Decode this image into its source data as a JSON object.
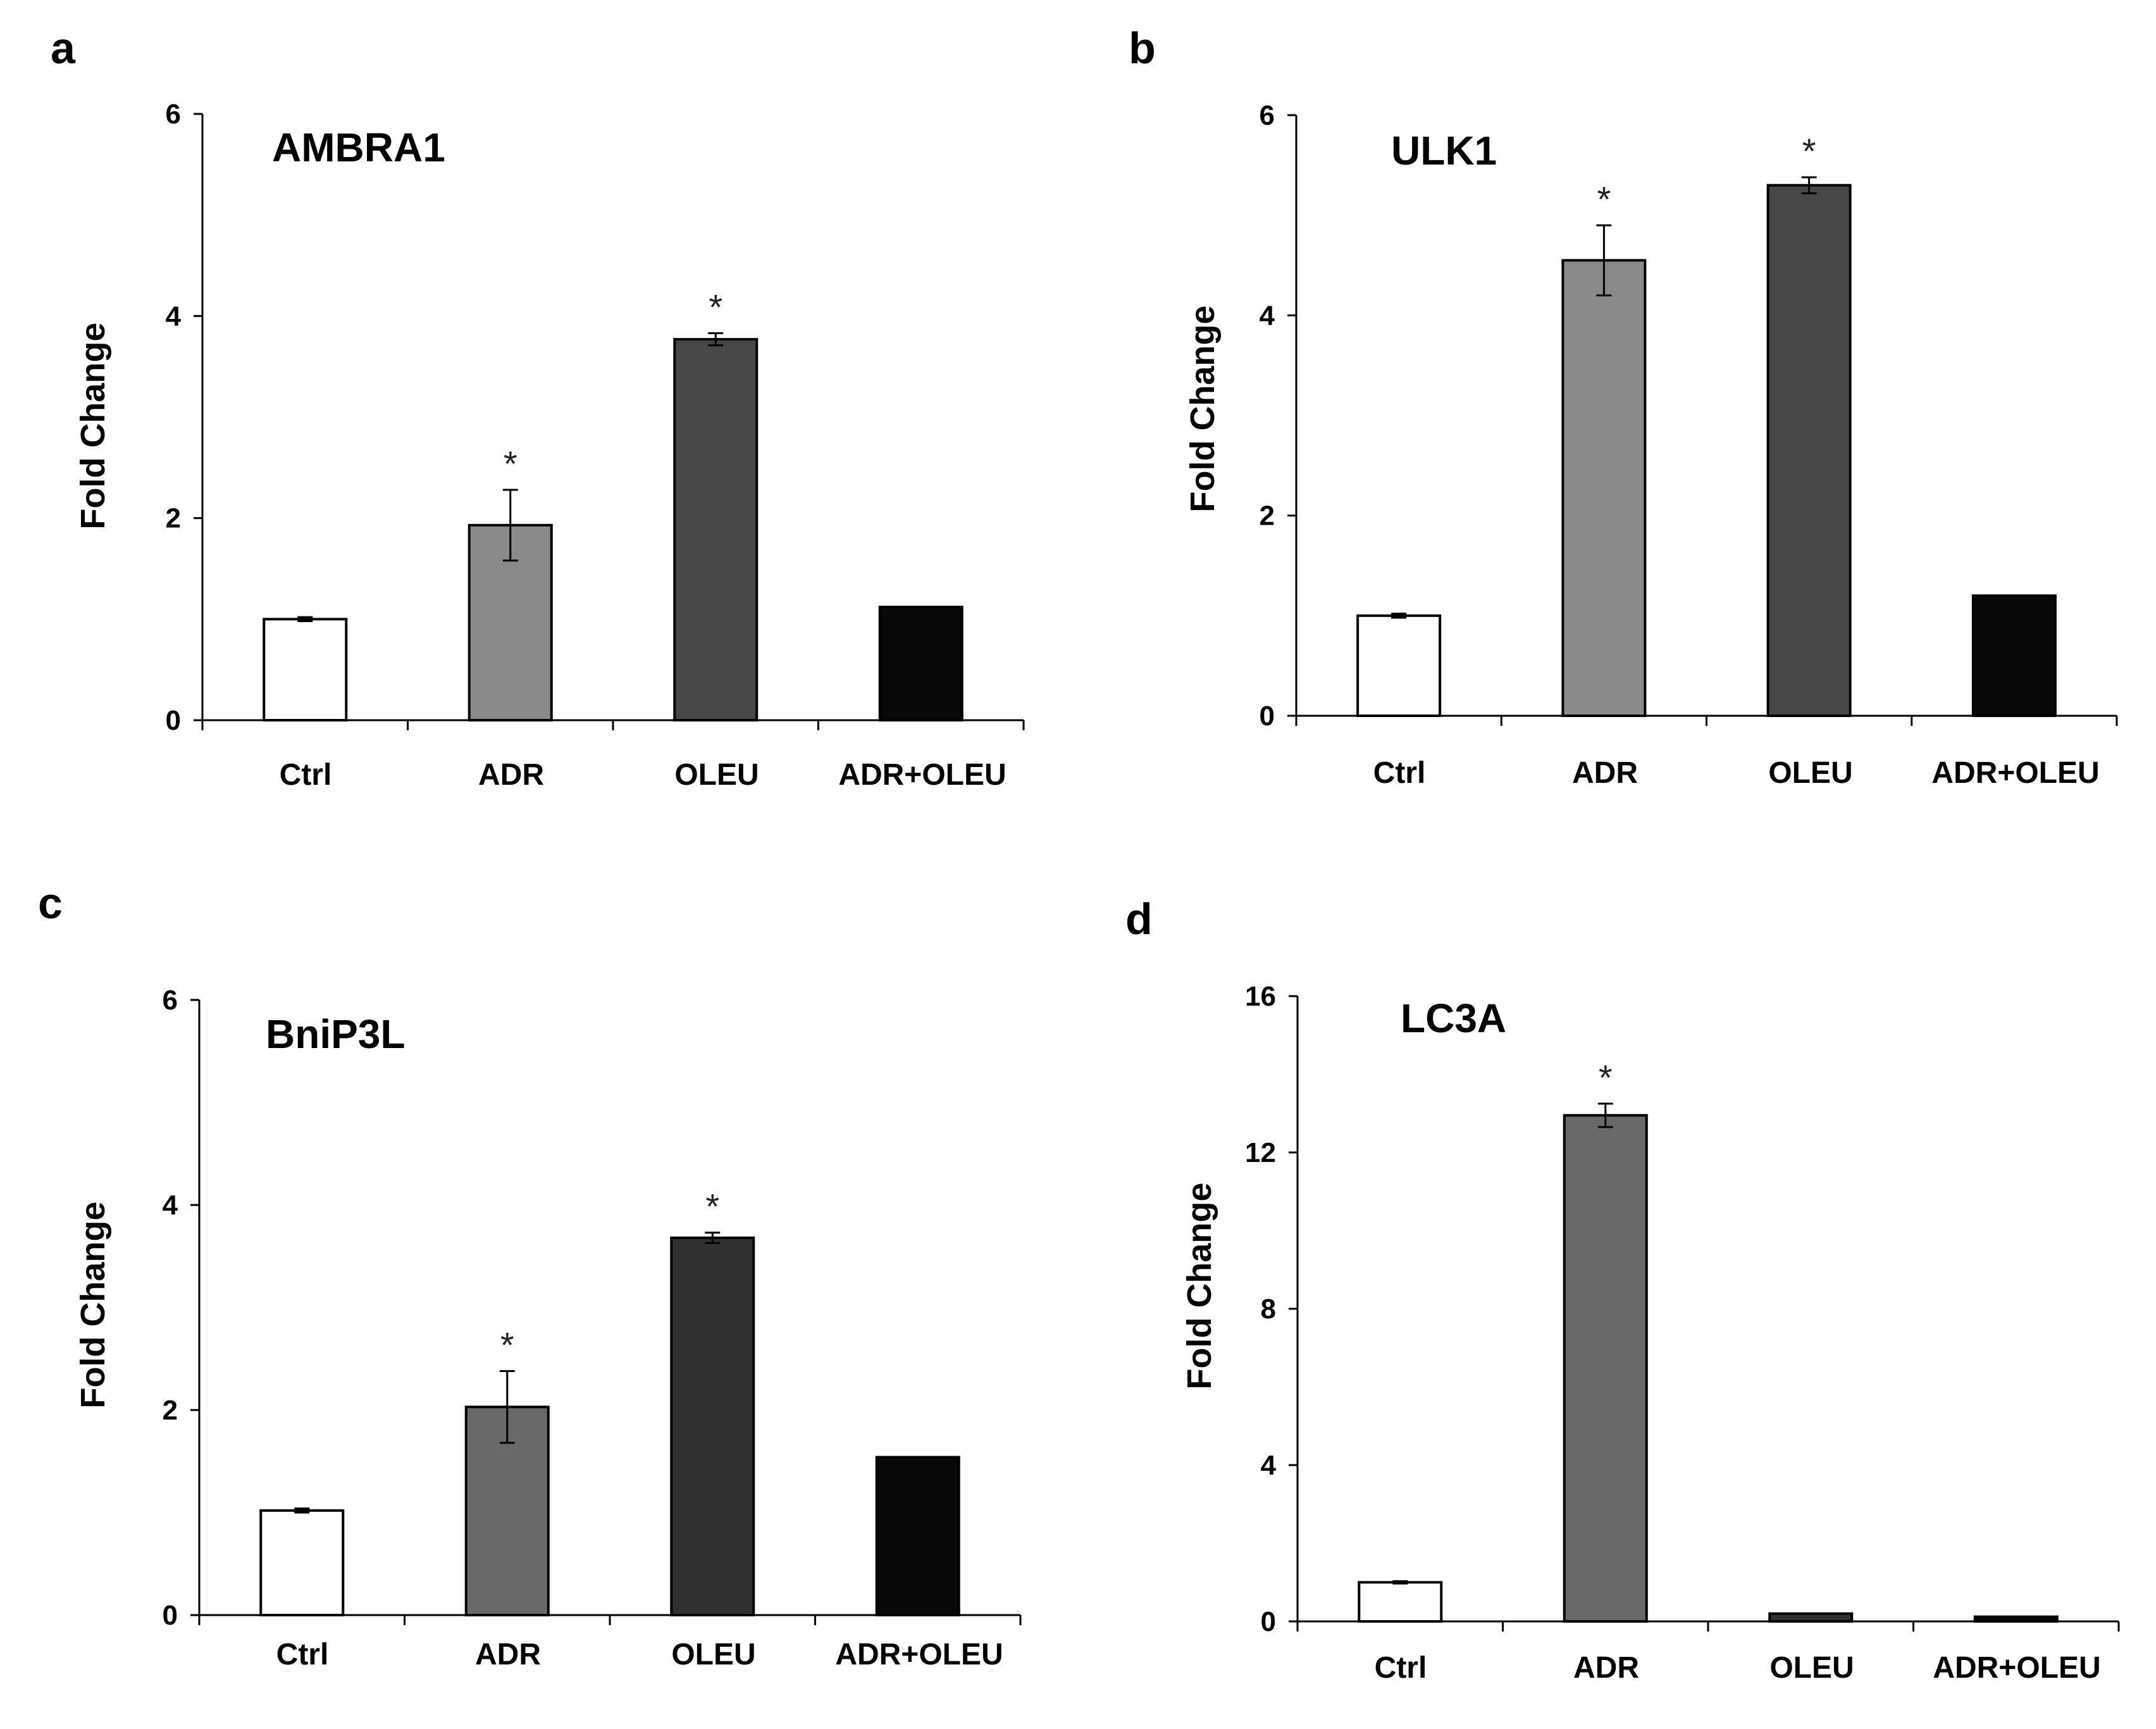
{
  "figure": {
    "ylabel": "Fold Change",
    "categories": [
      "Ctrl",
      "ADR",
      "OLEU",
      "ADR+OLEU"
    ]
  },
  "chart_data": [
    {
      "type": "bar",
      "panel": "a",
      "title": "AMBRA1",
      "ylabel": "Fold Change",
      "xlabel": "",
      "categories": [
        "Ctrl",
        "ADR",
        "OLEU",
        "ADR+OLEU"
      ],
      "values": [
        1.0,
        1.93,
        3.77,
        1.12
      ],
      "errors": [
        0.02,
        0.35,
        0.06,
        0.0
      ],
      "significance": [
        "",
        "*",
        "*",
        ""
      ],
      "ylim": [
        0,
        6
      ],
      "yticks": [
        0,
        2,
        4,
        6
      ],
      "bar_colors": [
        "#ffffff",
        "#8a8a8a",
        "#474747",
        "#080808"
      ]
    },
    {
      "type": "bar",
      "panel": "b",
      "title": "ULK1",
      "ylabel": "Fold Change",
      "xlabel": "",
      "categories": [
        "Ctrl",
        "ADR",
        "OLEU",
        "ADR+OLEU"
      ],
      "values": [
        1.0,
        4.55,
        5.3,
        1.2
      ],
      "errors": [
        0.02,
        0.35,
        0.08,
        0.0
      ],
      "significance": [
        "",
        "*",
        "*",
        ""
      ],
      "ylim": [
        0,
        6
      ],
      "yticks": [
        0,
        2,
        4,
        6
      ],
      "bar_colors": [
        "#ffffff",
        "#8a8a8a",
        "#474747",
        "#080808"
      ]
    },
    {
      "type": "bar",
      "panel": "c",
      "title": "BniP3L",
      "ylabel": "Fold Change",
      "xlabel": "",
      "categories": [
        "Ctrl",
        "ADR",
        "OLEU",
        "ADR+OLEU"
      ],
      "values": [
        1.02,
        2.03,
        3.68,
        1.54
      ],
      "errors": [
        0.02,
        0.35,
        0.05,
        0.0
      ],
      "significance": [
        "",
        "*",
        "*",
        ""
      ],
      "ylim": [
        0,
        6
      ],
      "yticks": [
        0,
        2,
        4,
        6
      ],
      "bar_colors": [
        "#ffffff",
        "#686868",
        "#303030",
        "#080808"
      ]
    },
    {
      "type": "bar",
      "panel": "d",
      "title": "LC3A",
      "ylabel": "Fold Change",
      "xlabel": "",
      "categories": [
        "Ctrl",
        "ADR",
        "OLEU",
        "ADR+OLEU"
      ],
      "values": [
        1.0,
        12.95,
        0.2,
        0.12
      ],
      "errors": [
        0.03,
        0.3,
        0.0,
        0.0
      ],
      "significance": [
        "",
        "*",
        "",
        ""
      ],
      "ylim": [
        0,
        16
      ],
      "yticks": [
        0,
        4,
        8,
        12,
        16
      ],
      "bar_colors": [
        "#ffffff",
        "#686868",
        "#303030",
        "#080808"
      ]
    }
  ]
}
